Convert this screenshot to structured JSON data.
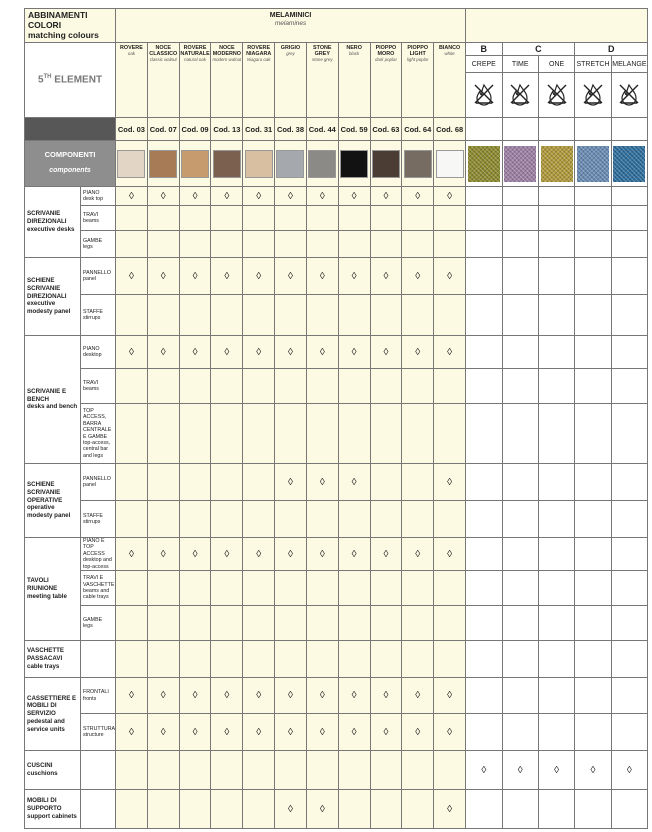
{
  "header": {
    "title": "ABBINAMENTI COLORI",
    "subtitle": "matching colours",
    "product": {
      "number": "5",
      "suffix": "TH",
      "name": "ELEMENT"
    },
    "components": {
      "title": "COMPONENTI",
      "subtitle": "components"
    }
  },
  "melamines": {
    "title": "MELAMINICI",
    "subtitle": "melamines",
    "items": [
      {
        "name": "ROVERE",
        "translation": "oak",
        "code": "Cod. 03",
        "color": "#e3d5c6"
      },
      {
        "name": "NOCE CLASSICO",
        "translation": "classic walnut",
        "code": "Cod. 07",
        "color": "#a87b57"
      },
      {
        "name": "ROVERE NATURALE",
        "translation": "natural oak",
        "code": "Cod. 09",
        "color": "#c69b6d"
      },
      {
        "name": "NOCE MODERNO",
        "translation": "modern walnut",
        "code": "Cod. 13",
        "color": "#7c604f"
      },
      {
        "name": "ROVERE NIAGARA",
        "translation": "Niagara oak",
        "code": "Cod. 31",
        "color": "#d8bfa1"
      },
      {
        "name": "GRIGIO",
        "translation": "grey",
        "code": "Cod. 38",
        "color": "#a5a8ac"
      },
      {
        "name": "STONE GREY",
        "translation": "stone grey",
        "code": "Cod. 44",
        "color": "#8b8a87"
      },
      {
        "name": "NERO",
        "translation": "black",
        "code": "Cod. 59",
        "color": "#121212"
      },
      {
        "name": "PIOPPO MORO",
        "translation": "dark poplar",
        "code": "Cod. 63",
        "color": "#4b3d34"
      },
      {
        "name": "PIOPPO LIGHT",
        "translation": "light poplar",
        "code": "Cod. 64",
        "color": "#776c61"
      },
      {
        "name": "BIANCO",
        "translation": "white",
        "code": "Cod. 68",
        "color": "#f7f7f5"
      }
    ]
  },
  "fabrics": {
    "groups": [
      {
        "label": "B",
        "span": 1
      },
      {
        "label": "C",
        "span": 2
      },
      {
        "label": "D",
        "span": 2
      }
    ],
    "items": [
      {
        "name": "CREPE",
        "color": "#8d8a2f"
      },
      {
        "name": "TIME",
        "color": "#9d80a6"
      },
      {
        "name": "ONE",
        "color": "#b09a3b"
      },
      {
        "name": "STRETCH",
        "color": "#6a8cb4"
      },
      {
        "name": "MELANGE",
        "color": "#2f6f9e"
      }
    ]
  },
  "rows": [
    {
      "category": "SCRIVANIE DIREZIONALI",
      "translation": "executive desks",
      "components": [
        {
          "name": "PIANO",
          "translation": "desk top",
          "cells": [
            "◊",
            "◊",
            "◊",
            "◊",
            "◊",
            "◊",
            "◊",
            "◊",
            "◊",
            "◊",
            "◊",
            null,
            null,
            null,
            null,
            null
          ]
        },
        {
          "name": "TRAVI",
          "translation": "beams",
          "cells": [
            null,
            null,
            null,
            null,
            null,
            null,
            null,
            null,
            null,
            null,
            null,
            null,
            null,
            null,
            null,
            null
          ]
        },
        {
          "name": "GAMBE",
          "translation": "legs",
          "cells": [
            null,
            null,
            null,
            null,
            null,
            null,
            null,
            null,
            null,
            null,
            null,
            null,
            null,
            null,
            null,
            null
          ]
        }
      ]
    },
    {
      "category": "SCHIENE SCRIVANIE DIREZIONALI",
      "translation": "executive modesty panel",
      "components": [
        {
          "name": "PANNELLO",
          "translation": "panel",
          "cells": [
            "◊",
            "◊",
            "◊",
            "◊",
            "◊",
            "◊",
            "◊",
            "◊",
            "◊",
            "◊",
            "◊",
            null,
            null,
            null,
            null,
            null
          ]
        },
        {
          "name": "STAFFE",
          "translation": "stirrups",
          "cells": [
            null,
            null,
            null,
            null,
            null,
            null,
            null,
            null,
            null,
            null,
            null,
            null,
            null,
            null,
            null,
            null
          ]
        }
      ]
    },
    {
      "category": "SCRIVANIE E BENCH",
      "translation": "desks and bench",
      "components": [
        {
          "name": "PIANO",
          "translation": "desktop",
          "cells": [
            "◊",
            "◊",
            "◊",
            "◊",
            "◊",
            "◊",
            "◊",
            "◊",
            "◊",
            "◊",
            "◊",
            null,
            null,
            null,
            null,
            null
          ]
        },
        {
          "name": "TRAVI",
          "translation": "beams",
          "cells": [
            null,
            null,
            null,
            null,
            null,
            null,
            null,
            null,
            null,
            null,
            null,
            null,
            null,
            null,
            null,
            null
          ]
        },
        {
          "name": "TOP ACCESS, BARRA CENTRALE E GAMBE",
          "translation": "top-access, central bar and legs",
          "cells": [
            null,
            null,
            null,
            null,
            null,
            null,
            null,
            null,
            null,
            null,
            null,
            null,
            null,
            null,
            null,
            null
          ]
        }
      ]
    },
    {
      "category": "SCHIENE SCRIVANIE OPERATIVE",
      "translation": "operative modesty panel",
      "components": [
        {
          "name": "PANNELLO",
          "translation": "panel",
          "cells": [
            null,
            null,
            null,
            null,
            null,
            "◊",
            "◊",
            "◊",
            null,
            null,
            "◊",
            null,
            null,
            null,
            null,
            null
          ]
        },
        {
          "name": "STAFFE",
          "translation": "stirrups",
          "cells": [
            null,
            null,
            null,
            null,
            null,
            null,
            null,
            null,
            null,
            null,
            null,
            null,
            null,
            null,
            null,
            null
          ]
        }
      ]
    },
    {
      "category": "TAVOLI RIUNIONE",
      "translation": "meeting table",
      "components": [
        {
          "name": "PIANO E TOP ACCESS",
          "translation": "desktop and top-access",
          "cells": [
            "◊",
            "◊",
            "◊",
            "◊",
            "◊",
            "◊",
            "◊",
            "◊",
            "◊",
            "◊",
            "◊",
            null,
            null,
            null,
            null,
            null
          ]
        },
        {
          "name": "TRAVI E VASCHETTE",
          "translation": "beams and cable trays",
          "cells": [
            null,
            null,
            null,
            null,
            null,
            null,
            null,
            null,
            null,
            null,
            null,
            null,
            null,
            null,
            null,
            null
          ]
        },
        {
          "name": "GAMBE",
          "translation": "legs",
          "cells": [
            null,
            null,
            null,
            null,
            null,
            null,
            null,
            null,
            null,
            null,
            null,
            null,
            null,
            null,
            null,
            null
          ]
        }
      ]
    },
    {
      "category": "VASCHETTE PASSACAVI",
      "translation": "cable trays",
      "components": [
        {
          "cells": [
            null,
            null,
            null,
            null,
            null,
            null,
            null,
            null,
            null,
            null,
            null,
            null,
            null,
            null,
            null,
            null
          ]
        }
      ]
    },
    {
      "category": "CASSETTIERE E MOBILI DI SERVIZIO",
      "translation": "pedestal and service units",
      "components": [
        {
          "name": "FRONTALI",
          "translation": "fronts",
          "cells": [
            "◊",
            "◊",
            "◊",
            "◊",
            "◊",
            "◊",
            "◊",
            "◊",
            "◊",
            "◊",
            "◊",
            null,
            null,
            null,
            null,
            null
          ]
        },
        {
          "name": "STRUTTURA",
          "translation": "structure",
          "cells": [
            "◊",
            "◊",
            "◊",
            "◊",
            "◊",
            "◊",
            "◊",
            "◊",
            "◊",
            "◊",
            "◊",
            null,
            null,
            null,
            null,
            null
          ]
        }
      ]
    },
    {
      "category": "CUSCINI",
      "translation": "cuschions",
      "components": [
        {
          "cells": [
            null,
            null,
            null,
            null,
            null,
            null,
            null,
            null,
            null,
            null,
            null,
            "◊",
            "◊",
            "◊",
            "◊",
            "◊"
          ]
        }
      ]
    },
    {
      "category": "MOBILI DI SUPPORTO",
      "translation": "support cabinets",
      "components": [
        {
          "cells": [
            null,
            null,
            null,
            null,
            null,
            "◊",
            "◊",
            null,
            null,
            null,
            "◊",
            null,
            null,
            null,
            null,
            null
          ]
        }
      ]
    }
  ]
}
